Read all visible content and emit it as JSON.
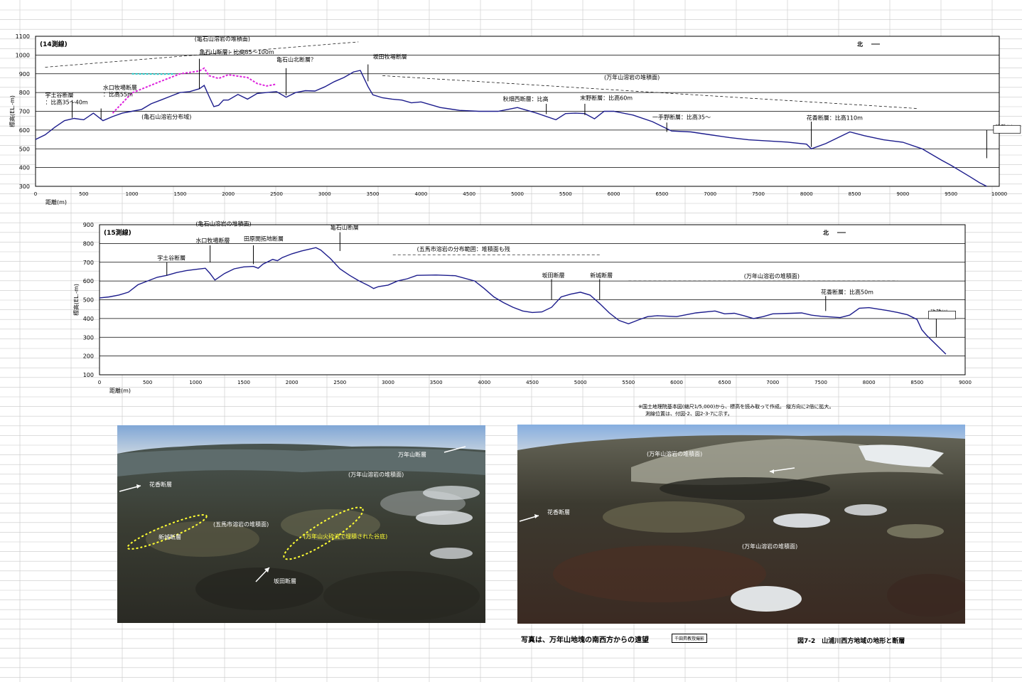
{
  "chart_data": [
    {
      "type": "line",
      "title": "(14測線)",
      "direction_label": "北",
      "xlabel": "距離(m)",
      "ylabel": "標高(EL.-m)",
      "xlim": [
        0,
        10000
      ],
      "ylim": [
        300,
        1100
      ],
      "xticks": [
        "0",
        "500",
        "1000",
        "1500",
        "2000",
        "2500",
        "3000",
        "3500",
        "4000",
        "4500",
        "5000",
        "5500",
        "6000",
        "6500",
        "7000",
        "7500",
        "8000",
        "8500",
        "9000",
        "9500",
        "10000"
      ],
      "yticks": [
        "300",
        "400",
        "500",
        "600",
        "700",
        "800",
        "900",
        "1000",
        "1100"
      ],
      "grid": true,
      "line_color": "#1c1c8c",
      "profile": [
        [
          0,
          550
        ],
        [
          100,
          575
        ],
        [
          200,
          615
        ],
        [
          300,
          650
        ],
        [
          400,
          662
        ],
        [
          500,
          655
        ],
        [
          600,
          690
        ],
        [
          700,
          650
        ],
        [
          800,
          672
        ],
        [
          900,
          690
        ],
        [
          1000,
          700
        ],
        [
          1100,
          710
        ],
        [
          1200,
          740
        ],
        [
          1300,
          760
        ],
        [
          1400,
          780
        ],
        [
          1500,
          800
        ],
        [
          1600,
          805
        ],
        [
          1700,
          820
        ],
        [
          1750,
          838
        ],
        [
          1800,
          780
        ],
        [
          1850,
          725
        ],
        [
          1900,
          732
        ],
        [
          1950,
          760
        ],
        [
          2000,
          760
        ],
        [
          2100,
          790
        ],
        [
          2200,
          765
        ],
        [
          2300,
          795
        ],
        [
          2400,
          800
        ],
        [
          2500,
          805
        ],
        [
          2600,
          775
        ],
        [
          2700,
          800
        ],
        [
          2800,
          810
        ],
        [
          2900,
          808
        ],
        [
          3000,
          830
        ],
        [
          3100,
          858
        ],
        [
          3200,
          880
        ],
        [
          3300,
          910
        ],
        [
          3370,
          918
        ],
        [
          3450,
          832
        ],
        [
          3500,
          788
        ],
        [
          3600,
          772
        ],
        [
          3700,
          765
        ],
        [
          3800,
          760
        ],
        [
          3900,
          745
        ],
        [
          4000,
          750
        ],
        [
          4200,
          720
        ],
        [
          4400,
          705
        ],
        [
          4600,
          700
        ],
        [
          4800,
          700
        ],
        [
          5000,
          720
        ],
        [
          5200,
          690
        ],
        [
          5400,
          655
        ],
        [
          5500,
          688
        ],
        [
          5600,
          690
        ],
        [
          5700,
          688
        ],
        [
          5800,
          660
        ],
        [
          5900,
          700
        ],
        [
          6000,
          700
        ],
        [
          6200,
          680
        ],
        [
          6400,
          645
        ],
        [
          6600,
          595
        ],
        [
          6800,
          590
        ],
        [
          7000,
          575
        ],
        [
          7200,
          560
        ],
        [
          7400,
          548
        ],
        [
          7600,
          542
        ],
        [
          7800,
          536
        ],
        [
          8000,
          525
        ],
        [
          8050,
          500
        ],
        [
          8200,
          528
        ],
        [
          8400,
          578
        ],
        [
          8450,
          590
        ],
        [
          8600,
          570
        ],
        [
          8800,
          548
        ],
        [
          9000,
          535
        ],
        [
          9200,
          500
        ],
        [
          9400,
          440
        ],
        [
          9500,
          412
        ],
        [
          9700,
          350
        ],
        [
          9800,
          318
        ],
        [
          9870,
          300
        ]
      ],
      "overlay_series": [
        {
          "color": "#dd22dd",
          "dashed": true,
          "points": [
            [
              800,
              690
            ],
            [
              1000,
              798
            ],
            [
              1300,
              860
            ],
            [
              1500,
              900
            ],
            [
              1700,
              915
            ],
            [
              1750,
              930
            ],
            [
              1800,
              890
            ],
            [
              1900,
              875
            ],
            [
              2000,
              895
            ],
            [
              2200,
              880
            ],
            [
              2300,
              848
            ],
            [
              2400,
              835
            ],
            [
              2500,
              845
            ]
          ]
        },
        {
          "color": "#22cccc",
          "dashed": true,
          "points": [
            [
              1000,
              900
            ],
            [
              1300,
              898
            ],
            [
              1450,
              900
            ]
          ]
        }
      ],
      "labels": [
        {
          "text": "(亀石山溶岩の堆積面)",
          "x": 1650,
          "y": 1075
        },
        {
          "text": "亀石山断層：比高85～100m",
          "x": 1700,
          "y": 1005
        },
        {
          "text": "亀石山北断層？",
          "x": 2500,
          "y": 965
        },
        {
          "text": "坂田牧場断層",
          "x": 3500,
          "y": 980
        },
        {
          "text": "宇土谷断層",
          "x": 100,
          "y": 775
        },
        {
          "text": "：比高35～40m",
          "x": 100,
          "y": 738
        },
        {
          "text": "水口牧場断層",
          "x": 700,
          "y": 815
        },
        {
          "text": "：比高55m",
          "x": 700,
          "y": 780
        },
        {
          "text": "(亀石山溶岩分布域)",
          "x": 1100,
          "y": 660
        },
        {
          "text": "(万年山溶岩の堆積面)",
          "x": 5900,
          "y": 870
        },
        {
          "text": "秋畑西断層：比高",
          "x": 4850,
          "y": 755
        },
        {
          "text": "末野断層：比高60m",
          "x": 5650,
          "y": 760
        },
        {
          "text": "一手野断層：比高35～",
          "x": 6400,
          "y": 658
        },
        {
          "text": "花香断層：比高110m",
          "x": 8000,
          "y": 655
        },
        {
          "text": "玖珠川",
          "x": 9960,
          "y": 605
        }
      ]
    },
    {
      "type": "line",
      "title": "(15測線)",
      "direction_label": "北",
      "xlabel": "距離(m)",
      "ylabel": "標高(EL.-m)",
      "xlim": [
        0,
        9000
      ],
      "ylim": [
        100,
        900
      ],
      "xticks": [
        "0",
        "500",
        "1000",
        "1500",
        "2000",
        "2500",
        "3000",
        "3500",
        "4000",
        "4500",
        "5000",
        "5500",
        "6000",
        "6500",
        "7000",
        "7500",
        "8000",
        "8500",
        "9000"
      ],
      "yticks": [
        "100",
        "200",
        "300",
        "400",
        "500",
        "600",
        "700",
        "800",
        "900"
      ],
      "grid": true,
      "line_color": "#1c1c8c",
      "profile": [
        [
          0,
          510
        ],
        [
          100,
          515
        ],
        [
          200,
          525
        ],
        [
          300,
          540
        ],
        [
          400,
          580
        ],
        [
          500,
          600
        ],
        [
          600,
          620
        ],
        [
          700,
          630
        ],
        [
          800,
          645
        ],
        [
          900,
          655
        ],
        [
          1000,
          662
        ],
        [
          1100,
          668
        ],
        [
          1150,
          640
        ],
        [
          1200,
          605
        ],
        [
          1300,
          640
        ],
        [
          1400,
          665
        ],
        [
          1500,
          675
        ],
        [
          1600,
          678
        ],
        [
          1650,
          668
        ],
        [
          1700,
          690
        ],
        [
          1800,
          715
        ],
        [
          1850,
          708
        ],
        [
          1900,
          725
        ],
        [
          2000,
          745
        ],
        [
          2100,
          760
        ],
        [
          2200,
          772
        ],
        [
          2250,
          778
        ],
        [
          2300,
          765
        ],
        [
          2400,
          720
        ],
        [
          2500,
          665
        ],
        [
          2600,
          630
        ],
        [
          2700,
          600
        ],
        [
          2800,
          575
        ],
        [
          2850,
          560
        ],
        [
          2900,
          570
        ],
        [
          3000,
          578
        ],
        [
          3100,
          600
        ],
        [
          3200,
          612
        ],
        [
          3300,
          630
        ],
        [
          3500,
          632
        ],
        [
          3700,
          628
        ],
        [
          3900,
          600
        ],
        [
          4000,
          560
        ],
        [
          4100,
          515
        ],
        [
          4200,
          485
        ],
        [
          4300,
          460
        ],
        [
          4400,
          440
        ],
        [
          4500,
          432
        ],
        [
          4600,
          435
        ],
        [
          4700,
          460
        ],
        [
          4800,
          515
        ],
        [
          4900,
          530
        ],
        [
          5000,
          540
        ],
        [
          5100,
          525
        ],
        [
          5200,
          480
        ],
        [
          5300,
          430
        ],
        [
          5400,
          390
        ],
        [
          5500,
          372
        ],
        [
          5600,
          392
        ],
        [
          5700,
          410
        ],
        [
          5800,
          415
        ],
        [
          6000,
          410
        ],
        [
          6200,
          430
        ],
        [
          6400,
          440
        ],
        [
          6500,
          425
        ],
        [
          6600,
          428
        ],
        [
          6700,
          415
        ],
        [
          6800,
          400
        ],
        [
          6900,
          410
        ],
        [
          7000,
          425
        ],
        [
          7200,
          428
        ],
        [
          7300,
          430
        ],
        [
          7400,
          418
        ],
        [
          7500,
          412
        ],
        [
          7700,
          405
        ],
        [
          7800,
          418
        ],
        [
          7900,
          455
        ],
        [
          8000,
          458
        ],
        [
          8100,
          450
        ],
        [
          8200,
          442
        ],
        [
          8300,
          432
        ],
        [
          8400,
          420
        ],
        [
          8500,
          395
        ],
        [
          8550,
          340
        ],
        [
          8600,
          310
        ],
        [
          8700,
          260
        ],
        [
          8800,
          210
        ]
      ],
      "overlay_series": [],
      "labels": [
        {
          "text": "(亀石山溶岩の堆積面)",
          "x": 1000,
          "y": 895
        },
        {
          "text": "水口牧場断層",
          "x": 1000,
          "y": 805
        },
        {
          "text": "田原開拓地断層",
          "x": 1500,
          "y": 815
        },
        {
          "text": "亀石山断層",
          "x": 2400,
          "y": 875
        },
        {
          "text": "宇土谷断層",
          "x": 600,
          "y": 712
        },
        {
          "text": "(五馬市溶岩の分布範囲：堆積面も残",
          "x": 3300,
          "y": 760
        },
        {
          "text": "坂田断層",
          "x": 4600,
          "y": 620
        },
        {
          "text": "新城断層",
          "x": 5100,
          "y": 620
        },
        {
          "text": "(万年山溶岩の堆積面)",
          "x": 6700,
          "y": 615
        },
        {
          "text": "花香断層：比高50m",
          "x": 7500,
          "y": 530
        },
        {
          "text": "玖珠川",
          "x": 8640,
          "y": 425
        }
      ]
    }
  ],
  "photo_left": {
    "labels": [
      {
        "text": "万年山断層",
        "color": "white"
      },
      {
        "text": "(万年山溶岩の堆積面)",
        "color": "white"
      },
      {
        "text": "花香断層",
        "color": "white"
      },
      {
        "text": "(五馬市溶岩の堆積面)",
        "color": "white"
      },
      {
        "text": "新城断層",
        "color": "white"
      },
      {
        "text": "(万年山火砕流で埋積された谷底)",
        "color": "yellow"
      },
      {
        "text": "坂田断層",
        "color": "white"
      }
    ]
  },
  "photo_right": {
    "labels": [
      {
        "text": "(万年山溶岩の堆積面)",
        "color": "white"
      },
      {
        "text": "花香断層",
        "color": "white"
      },
      {
        "text": "(万年山溶岩の堆積面)",
        "color": "white"
      }
    ]
  },
  "notes": {
    "line1": "※国土地理院基本図(縮尺1/5,000)から、標高を読み取って作成。 縦方向に2倍に拡大。",
    "line2": "測線位置は、付図-2、図2-3-7に示す。"
  },
  "captions": {
    "photo_caption": "写真は、万年山地塊の南西方からの遠望",
    "credit": "千田昇教授撮影",
    "figure_title": "図7-2　山浦川西方地域の地形と断層"
  }
}
